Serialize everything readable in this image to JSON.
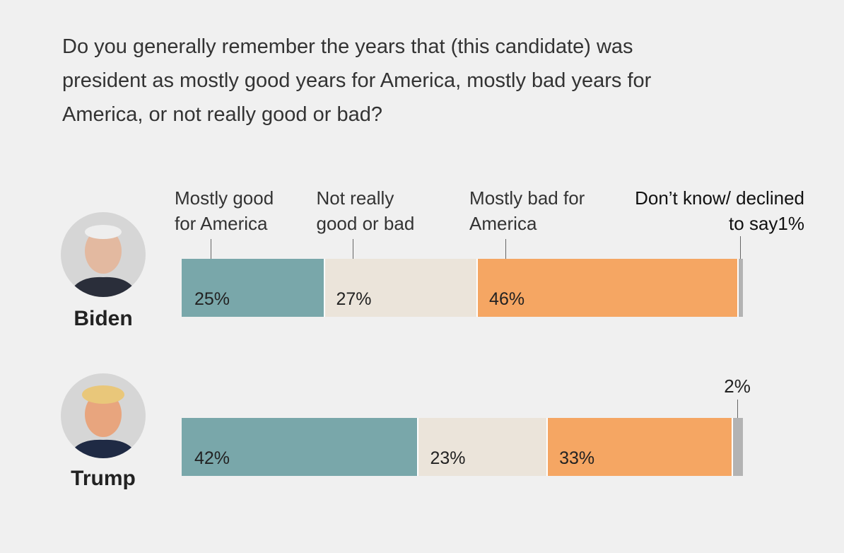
{
  "chart_data": {
    "type": "stacked-bar",
    "title": "Do you generally remember the years that (this candidate) was president as mostly good years for America, mostly bad years for America, or not really good or bad?",
    "categories": [
      "Biden",
      "Trump"
    ],
    "series": [
      {
        "name": "Mostly good for America",
        "color": "#79a7aa",
        "values": [
          25,
          42
        ],
        "value_labels": [
          "25%",
          "42%"
        ]
      },
      {
        "name": "Not really good or bad",
        "color": "#ebe4da",
        "values": [
          27,
          23
        ],
        "value_labels": [
          "27%",
          "23%"
        ]
      },
      {
        "name": "Mostly bad for America",
        "color": "#f5a663",
        "values": [
          46,
          33
        ],
        "value_labels": [
          "46%",
          "33%"
        ]
      },
      {
        "name": "Don’t know/ declined to say",
        "color": "#b3b3b3",
        "values": [
          1,
          2
        ],
        "value_labels": [
          "1%",
          "2%"
        ]
      }
    ]
  }
}
